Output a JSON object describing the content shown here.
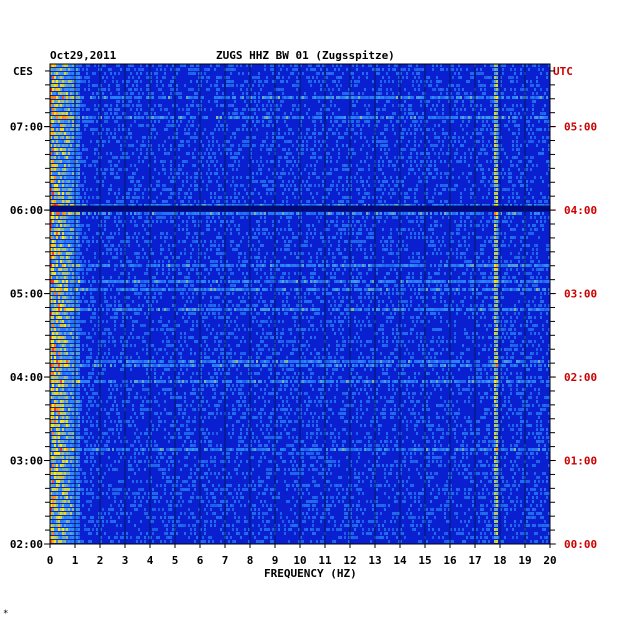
{
  "chart_data": {
    "type": "heatmap",
    "title_left": "Oct29,2011",
    "title": "ZUGS HHZ BW 01 (Zugsspitze)",
    "left_axis_label": "CES",
    "right_axis_label": "UTC",
    "xlabel": "FREQUENCY (HZ)",
    "x_ticks": [
      "0",
      "1",
      "2",
      "3",
      "4",
      "5",
      "6",
      "7",
      "8",
      "9",
      "10",
      "11",
      "12",
      "13",
      "14",
      "15",
      "16",
      "17",
      "18",
      "19",
      "20"
    ],
    "xlim": [
      0,
      20
    ],
    "left_time_ticks": [
      "07:00",
      "06:00",
      "05:00",
      "04:00",
      "03:00",
      "02:00"
    ],
    "right_time_ticks": [
      "05:00",
      "04:00",
      "03:00",
      "02:00",
      "01:00",
      "00:00"
    ],
    "time_range_utc": [
      "00:00",
      "05:45"
    ],
    "grid": true,
    "colors": {
      "background": "#0a1fd0",
      "low": "#0000b8",
      "mid": "#2a8cff",
      "high": "#ffee00",
      "peak": "#ff3010",
      "right_axis": "#cc0000"
    },
    "footnote": "*"
  }
}
